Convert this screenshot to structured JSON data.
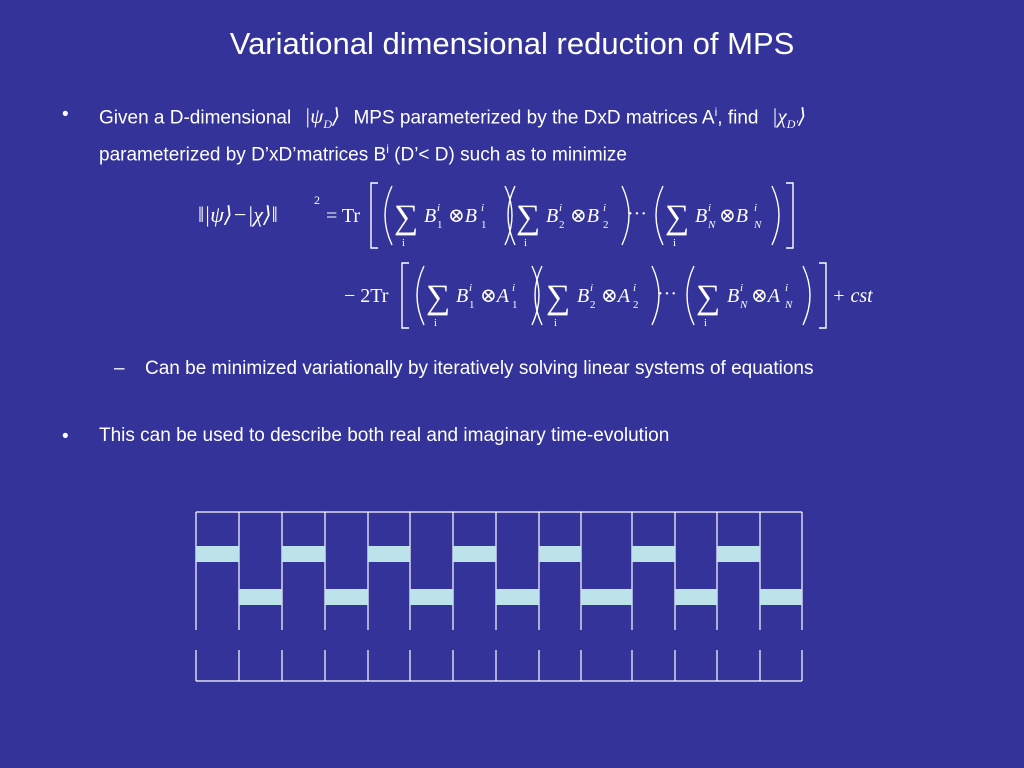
{
  "slide": {
    "title": "Variational dimensional reduction of MPS",
    "bullet_char": "•",
    "dash_char": "–",
    "bullet1": {
      "text_a": "Given a D-dimensional",
      "ket_psi": "ψ",
      "ket_psi_sub": "D",
      "text_b": "MPS parameterized by the DxD matrices A",
      "sup_i": "i",
      "text_c": ", find",
      "ket_chi": "χ",
      "ket_chi_sub": "D'",
      "line2_a": "parameterized by D’xD’matrices B",
      "line2_sup": "i",
      "line2_b": " (D’< D)  such as to minimize"
    },
    "equation": {
      "lhs_norm": "‖|ψ⟩−|χ⟩‖",
      "lhs_exp": "2",
      "eq": "= Tr",
      "line1_terms": [
        "B",
        "⊗B",
        "B",
        "⊗B",
        "B",
        "⊗B"
      ],
      "line1_subs": [
        "1",
        "1",
        "2",
        "2",
        "N",
        "N"
      ],
      "line2_prefix": "− 2Tr",
      "line2_terms": [
        "B",
        "⊗A",
        "B",
        "⊗A",
        "B",
        "⊗A"
      ],
      "line2_subs": [
        "1",
        "1",
        "2",
        "2",
        "N",
        "N"
      ],
      "sum_index": "i",
      "dots": "···",
      "tail": "+ cst"
    },
    "subbullet": "Can be minimized variationally by iteratively solving linear systems of equations",
    "bullet2": "This can be used to describe both real and imaginary time-evolution",
    "colors": {
      "background": "#333399",
      "text": "#ffffff",
      "gate": "#bde3ea"
    }
  }
}
